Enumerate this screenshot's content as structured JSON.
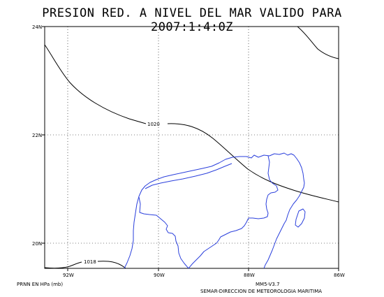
{
  "title": "PRESION RED. A NIVEL DEL MAR VALIDO PARA 2007:1:4:0Z",
  "map": {
    "lat_labels": [
      "24N",
      "22N",
      "20N"
    ],
    "lon_labels": [
      "92W",
      "90W",
      "88W",
      "86W"
    ],
    "isobar_labels": [
      "1020",
      "1018"
    ],
    "extent": {
      "lon": [
        -93,
        -86
      ],
      "lat": [
        19.6,
        24
      ]
    },
    "isobar_color": "#000000",
    "coast_color": "#2a3fdc",
    "grid_style": "dotted"
  },
  "footer": {
    "units": "PRNN EN HPa (mb)",
    "model": "MM5-V3.7",
    "agency": "SEMAR-DIRECCION DE METEOROLOGIA MARITIMA"
  }
}
